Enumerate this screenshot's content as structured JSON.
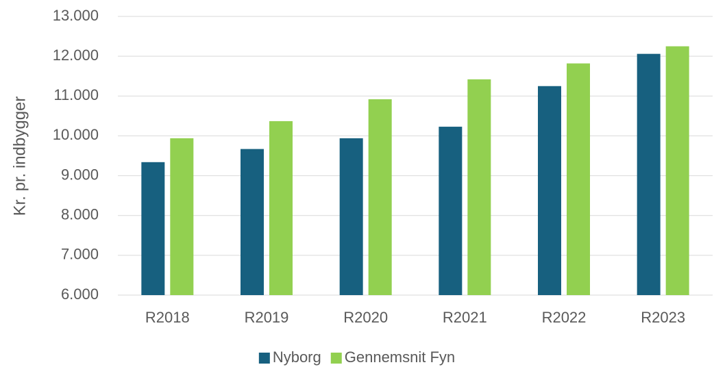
{
  "chart_data": {
    "type": "bar",
    "y_label": "Kr. pr. indbygger",
    "categories": [
      "R2018",
      "R2019",
      "R2020",
      "R2021",
      "R2022",
      "R2023"
    ],
    "series": [
      {
        "name": "Nyborg",
        "color": "#17607f",
        "values": [
          9340,
          9670,
          9940,
          10230,
          11250,
          12060
        ]
      },
      {
        "name": "Gennemsnit Fyn",
        "color": "#92d050",
        "values": [
          9940,
          10370,
          10920,
          11420,
          11820,
          12250
        ]
      }
    ],
    "ylim": [
      6000,
      13000
    ],
    "yticks": [
      {
        "value": 6000,
        "label": "6.000"
      },
      {
        "value": 7000,
        "label": "7.000"
      },
      {
        "value": 8000,
        "label": "8.000"
      },
      {
        "value": 9000,
        "label": "9.000"
      },
      {
        "value": 10000,
        "label": "10.000"
      },
      {
        "value": 11000,
        "label": "11.000"
      },
      {
        "value": 12000,
        "label": "12.000"
      },
      {
        "value": 13000,
        "label": "13.000"
      }
    ],
    "grid": true,
    "legend": "bottom"
  }
}
